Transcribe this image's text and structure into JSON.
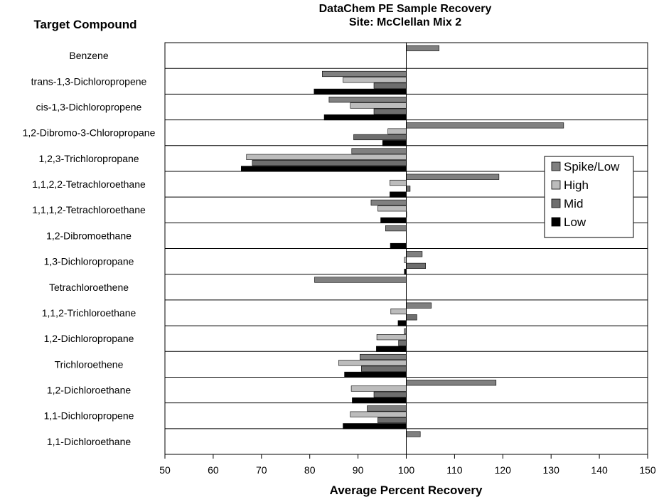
{
  "chart_data": {
    "type": "bar",
    "orientation": "horizontal",
    "title": "DataChem PE Sample Recovery",
    "subtitle": "Site:  McClellan  Mix 2",
    "ylabel": "Target Compound",
    "xlabel": "Average Percent Recovery",
    "xlim": [
      50,
      150
    ],
    "xticks": [
      50,
      60,
      70,
      80,
      90,
      100,
      110,
      120,
      130,
      140,
      150
    ],
    "baseline": 100,
    "legend_position": "right",
    "categories": [
      "Benzene",
      "trans-1,3-Dichloropropene",
      "cis-1,3-Dichloropropene",
      "1,2-Dibromo-3-Chloropropane",
      "1,2,3-Trichloropropane",
      "1,1,2,2-Tetrachloroethane",
      "1,1,1,2-Tetrachloroethane",
      "1,2-Dibromoethane",
      "1,3-Dichloropropane",
      "Tetrachloroethene",
      "1,1,2-Trichloroethane",
      "1,2-Dichloropropane",
      "Trichloroethene",
      "1,2-Dichloroethane",
      "1,1-Dichloropropene",
      "1,1-Dichloroethane"
    ],
    "series": [
      {
        "name": "Spike/Low",
        "color": "#808080",
        "values": [
          106.8,
          82.6,
          84.0,
          132.6,
          88.7,
          119.2,
          92.7,
          95.7,
          103.3,
          81.0,
          105.2,
          99.6,
          90.4,
          118.6,
          91.9,
          102.9
        ]
      },
      {
        "name": "High",
        "color": "#bcbcbc",
        "values": [
          null,
          86.9,
          88.4,
          96.2,
          66.9,
          96.6,
          94.1,
          null,
          99.6,
          null,
          96.8,
          93.9,
          86.0,
          88.6,
          88.4,
          null
        ]
      },
      {
        "name": "Mid",
        "color": "#6e6e6e",
        "values": [
          null,
          93.3,
          93.3,
          89.1,
          68.1,
          100.8,
          100.0,
          null,
          104.0,
          null,
          102.2,
          98.4,
          90.7,
          93.3,
          94.1,
          null
        ]
      },
      {
        "name": "Low",
        "color": "#000000",
        "values": [
          null,
          80.9,
          83.0,
          95.1,
          65.8,
          96.6,
          94.7,
          96.7,
          99.6,
          null,
          98.3,
          93.8,
          87.2,
          88.8,
          86.9,
          null
        ]
      }
    ]
  }
}
